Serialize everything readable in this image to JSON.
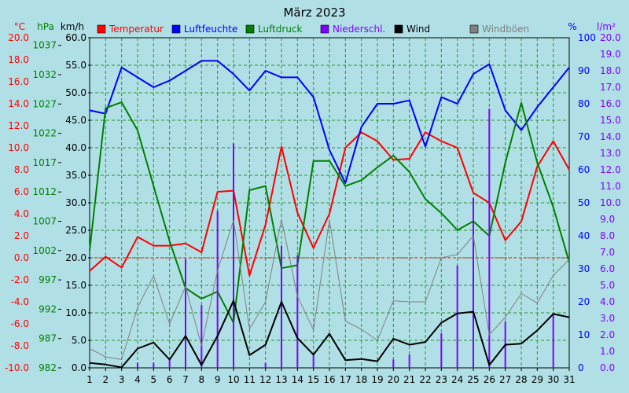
{
  "chart_data": {
    "type": "line",
    "title": "März 2023",
    "x": [
      1,
      2,
      3,
      4,
      5,
      6,
      7,
      8,
      9,
      10,
      11,
      12,
      13,
      14,
      15,
      16,
      17,
      18,
      19,
      20,
      21,
      22,
      23,
      24,
      25,
      26,
      27,
      28,
      29,
      30,
      31
    ],
    "axes": {
      "temperature": {
        "unit": "°C",
        "color": "#ff0000",
        "ticks": [
          "20.0",
          "18.0",
          "16.0",
          "14.0",
          "12.0",
          "10.0",
          "8.0",
          "6.0",
          "4.0",
          "2.0",
          "0.0",
          "-2.0",
          "-4.0",
          "-6.0",
          "-8.0",
          "-10.0"
        ],
        "range": [
          -10,
          20
        ]
      },
      "pressure": {
        "unit": "hPa",
        "color": "#008000",
        "ticks": [
          "1037",
          "1032",
          "1027",
          "1022",
          "1017",
          "1012",
          "1007",
          "1002",
          "997",
          "992",
          "987",
          "982"
        ],
        "range": [
          982,
          1038.3
        ]
      },
      "wind": {
        "unit": "km/h",
        "color": "#000000",
        "ticks": [
          "60.0",
          "55.0",
          "50.0",
          "45.0",
          "40.0",
          "35.0",
          "30.0",
          "25.0",
          "20.0",
          "15.0",
          "10.0",
          "5.0",
          "0.0"
        ],
        "range": [
          0,
          60
        ]
      },
      "humidity": {
        "unit": "%",
        "color": "#0000ff",
        "ticks": [
          "100",
          "90",
          "80",
          "70",
          "60",
          "50",
          "40",
          "30",
          "20",
          "10",
          "0"
        ],
        "range": [
          0,
          100
        ]
      },
      "precipitation": {
        "unit": "l/m²",
        "color": "#8000ff",
        "ticks": [
          "20.0",
          "19.0",
          "18.0",
          "17.0",
          "16.0",
          "15.0",
          "14.0",
          "13.0",
          "12.0",
          "11.0",
          "10.0",
          "9.0",
          "8.0",
          "7.0",
          "6.0",
          "5.0",
          "4.0",
          "3.0",
          "2.0",
          "1.0",
          "0.0"
        ],
        "range": [
          0,
          20
        ]
      }
    },
    "series": [
      {
        "name": "Temperatur",
        "axis": "temperature",
        "color": "#ff0000",
        "width": 2,
        "values": [
          -1.2,
          0.1,
          -0.9,
          1.9,
          1.1,
          1.1,
          1.3,
          0.5,
          6.0,
          6.1,
          -1.6,
          3.0,
          10.1,
          4.1,
          0.9,
          4.0,
          10.0,
          11.4,
          10.6,
          8.9,
          9.0,
          11.4,
          10.6,
          10.0,
          5.9,
          5.0,
          1.6,
          3.3,
          8.3,
          10.6,
          8.0
        ]
      },
      {
        "name": "Luftfeuchte",
        "axis": "humidity",
        "color": "#0000ff",
        "width": 2,
        "values": [
          78,
          77,
          91,
          88,
          85,
          87,
          90,
          93,
          93,
          89,
          84,
          90,
          88,
          88,
          82,
          66,
          56,
          73,
          80,
          80,
          81,
          67,
          82,
          80,
          89,
          92,
          78,
          72,
          79,
          85,
          91
        ]
      },
      {
        "name": "Luftdruck",
        "axis": "pressure",
        "color": "#008000",
        "width": 2,
        "values": [
          1002.0,
          1026.3,
          1027.3,
          1022.5,
          1013.0,
          1003.6,
          995.6,
          993.8,
          995.0,
          989.7,
          1012.3,
          1013.0,
          999.0,
          999.5,
          1017.3,
          1017.3,
          1013.0,
          1014.0,
          1016.2,
          1018.2,
          1015.4,
          1010.8,
          1008.4,
          1005.5,
          1007.0,
          1004.5,
          1017.0,
          1027.2,
          1017.0,
          1009.4,
          1000.0
        ]
      },
      {
        "name": "Niederschl.",
        "axis": "precipitation",
        "color": "#8000ff",
        "type": "bar",
        "values": [
          0,
          0,
          0,
          0.3,
          0.3,
          0.5,
          6.6,
          3.8,
          9.5,
          13.6,
          0,
          0.3,
          7.4,
          6.8,
          0.8,
          0,
          0,
          0,
          0,
          0.5,
          0.8,
          0,
          2.1,
          6.2,
          10.3,
          15.7,
          2.8,
          0,
          0,
          3.2,
          0
        ]
      },
      {
        "name": "Wind",
        "axis": "wind",
        "color": "#000000",
        "width": 2,
        "values": [
          0.9,
          0.6,
          0.1,
          3.5,
          4.6,
          1.5,
          5.8,
          0.5,
          5.8,
          12.2,
          2.3,
          4.2,
          12.0,
          5.4,
          2.4,
          6.2,
          1.4,
          1.6,
          1.2,
          5.3,
          4.2,
          4.7,
          8.2,
          9.9,
          10.2,
          0.5,
          4.2,
          4.4,
          6.8,
          9.8,
          9.2
        ]
      },
      {
        "name": "Windböen",
        "axis": "wind",
        "color": "#808080",
        "width": 1,
        "values": [
          3.5,
          2.0,
          1.5,
          11.0,
          16.7,
          8.0,
          14.8,
          4.0,
          17.7,
          26.8,
          7.0,
          12.0,
          27.0,
          13.0,
          6.9,
          26.9,
          8.5,
          7.0,
          5.0,
          12.2,
          12.0,
          12.0,
          20.0,
          20.6,
          24.0,
          6.0,
          9.2,
          13.5,
          11.8,
          16.8,
          19.7
        ]
      }
    ],
    "xlim": [
      1,
      31
    ],
    "grid": true,
    "legend_position": "top"
  }
}
